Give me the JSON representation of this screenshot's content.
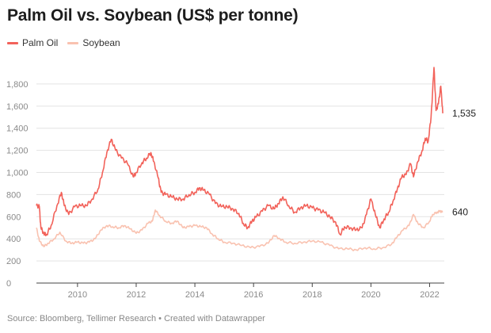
{
  "title": "Palm Oil vs. Soybean (US$ per tonne)",
  "legend": [
    {
      "label": "Palm Oil",
      "color": "#f2625a"
    },
    {
      "label": "Soybean",
      "color": "#f9c2b0"
    }
  ],
  "source": "Source: Bloomberg, Tellimer Research • Created with Datawrapper",
  "chart_data": {
    "type": "line",
    "title": "Palm Oil vs. Soybean (US$ per tonne)",
    "xlabel": "",
    "ylabel": "",
    "xlim": [
      2008.6,
      2022.5
    ],
    "ylim": [
      0,
      1950
    ],
    "x_ticks": [
      2010,
      2012,
      2014,
      2016,
      2018,
      2020,
      2022
    ],
    "y_ticks": [
      0,
      200,
      400,
      600,
      800,
      1000,
      1200,
      1400,
      1600,
      1800
    ],
    "y_tick_labels": [
      "0",
      "200",
      "400",
      "600",
      "800",
      "1,000",
      "1,200",
      "1,400",
      "1,600",
      "1,800"
    ],
    "grid": true,
    "legend_position": "top-left",
    "series": [
      {
        "name": "Palm Oil",
        "color": "#f2625a",
        "end_label": "1,535",
        "points": [
          [
            2008.6,
            700
          ],
          [
            2008.7,
            690
          ],
          [
            2008.75,
            500
          ],
          [
            2008.85,
            450
          ],
          [
            2008.95,
            440
          ],
          [
            2009.1,
            520
          ],
          [
            2009.3,
            700
          ],
          [
            2009.45,
            820
          ],
          [
            2009.55,
            700
          ],
          [
            2009.7,
            620
          ],
          [
            2009.9,
            690
          ],
          [
            2010.1,
            700
          ],
          [
            2010.3,
            700
          ],
          [
            2010.5,
            760
          ],
          [
            2010.7,
            850
          ],
          [
            2010.85,
            1000
          ],
          [
            2011.0,
            1180
          ],
          [
            2011.15,
            1300
          ],
          [
            2011.3,
            1200
          ],
          [
            2011.5,
            1130
          ],
          [
            2011.7,
            1080
          ],
          [
            2011.9,
            960
          ],
          [
            2012.0,
            1000
          ],
          [
            2012.2,
            1090
          ],
          [
            2012.35,
            1130
          ],
          [
            2012.5,
            1180
          ],
          [
            2012.6,
            1100
          ],
          [
            2012.75,
            950
          ],
          [
            2012.85,
            820
          ],
          [
            2013.0,
            800
          ],
          [
            2013.2,
            780
          ],
          [
            2013.4,
            760
          ],
          [
            2013.6,
            760
          ],
          [
            2013.8,
            800
          ],
          [
            2014.0,
            820
          ],
          [
            2014.15,
            860
          ],
          [
            2014.3,
            840
          ],
          [
            2014.5,
            800
          ],
          [
            2014.7,
            720
          ],
          [
            2014.9,
            690
          ],
          [
            2015.1,
            690
          ],
          [
            2015.3,
            670
          ],
          [
            2015.5,
            630
          ],
          [
            2015.65,
            540
          ],
          [
            2015.8,
            500
          ],
          [
            2015.95,
            560
          ],
          [
            2016.1,
            600
          ],
          [
            2016.3,
            650
          ],
          [
            2016.5,
            700
          ],
          [
            2016.7,
            670
          ],
          [
            2016.85,
            720
          ],
          [
            2017.0,
            780
          ],
          [
            2017.2,
            700
          ],
          [
            2017.4,
            640
          ],
          [
            2017.6,
            680
          ],
          [
            2017.8,
            700
          ],
          [
            2018.0,
            680
          ],
          [
            2018.2,
            660
          ],
          [
            2018.4,
            640
          ],
          [
            2018.6,
            600
          ],
          [
            2018.8,
            550
          ],
          [
            2018.95,
            440
          ],
          [
            2019.1,
            510
          ],
          [
            2019.3,
            500
          ],
          [
            2019.5,
            480
          ],
          [
            2019.7,
            500
          ],
          [
            2019.85,
            620
          ],
          [
            2020.0,
            760
          ],
          [
            2020.15,
            620
          ],
          [
            2020.3,
            500
          ],
          [
            2020.45,
            580
          ],
          [
            2020.6,
            640
          ],
          [
            2020.75,
            740
          ],
          [
            2020.9,
            850
          ],
          [
            2021.05,
            960
          ],
          [
            2021.2,
            980
          ],
          [
            2021.35,
            1080
          ],
          [
            2021.45,
            960
          ],
          [
            2021.6,
            1100
          ],
          [
            2021.75,
            1200
          ],
          [
            2021.85,
            1310
          ],
          [
            2021.95,
            1280
          ],
          [
            2022.05,
            1500
          ],
          [
            2022.15,
            1950
          ],
          [
            2022.22,
            1560
          ],
          [
            2022.3,
            1620
          ],
          [
            2022.38,
            1780
          ],
          [
            2022.45,
            1535
          ]
        ]
      },
      {
        "name": "Soybean",
        "color": "#f9c2b0",
        "end_label": "640",
        "points": [
          [
            2008.6,
            500
          ],
          [
            2008.7,
            380
          ],
          [
            2008.85,
            330
          ],
          [
            2009.0,
            360
          ],
          [
            2009.2,
            400
          ],
          [
            2009.4,
            460
          ],
          [
            2009.6,
            380
          ],
          [
            2009.8,
            360
          ],
          [
            2010.0,
            370
          ],
          [
            2010.2,
            360
          ],
          [
            2010.4,
            370
          ],
          [
            2010.6,
            400
          ],
          [
            2010.8,
            480
          ],
          [
            2011.0,
            520
          ],
          [
            2011.2,
            510
          ],
          [
            2011.4,
            500
          ],
          [
            2011.6,
            520
          ],
          [
            2011.8,
            490
          ],
          [
            2012.0,
            450
          ],
          [
            2012.2,
            480
          ],
          [
            2012.4,
            540
          ],
          [
            2012.55,
            560
          ],
          [
            2012.65,
            660
          ],
          [
            2012.8,
            610
          ],
          [
            2013.0,
            560
          ],
          [
            2013.2,
            540
          ],
          [
            2013.4,
            560
          ],
          [
            2013.6,
            500
          ],
          [
            2013.8,
            510
          ],
          [
            2014.0,
            520
          ],
          [
            2014.2,
            510
          ],
          [
            2014.4,
            500
          ],
          [
            2014.6,
            440
          ],
          [
            2014.8,
            400
          ],
          [
            2015.0,
            370
          ],
          [
            2015.3,
            360
          ],
          [
            2015.6,
            340
          ],
          [
            2015.9,
            320
          ],
          [
            2016.2,
            330
          ],
          [
            2016.5,
            360
          ],
          [
            2016.7,
            430
          ],
          [
            2016.9,
            400
          ],
          [
            2017.1,
            370
          ],
          [
            2017.4,
            360
          ],
          [
            2017.7,
            370
          ],
          [
            2018.0,
            380
          ],
          [
            2018.3,
            370
          ],
          [
            2018.6,
            340
          ],
          [
            2018.9,
            310
          ],
          [
            2019.2,
            310
          ],
          [
            2019.5,
            300
          ],
          [
            2019.8,
            320
          ],
          [
            2020.1,
            310
          ],
          [
            2020.4,
            320
          ],
          [
            2020.7,
            350
          ],
          [
            2020.9,
            420
          ],
          [
            2021.1,
            480
          ],
          [
            2021.3,
            520
          ],
          [
            2021.45,
            620
          ],
          [
            2021.6,
            540
          ],
          [
            2021.8,
            500
          ],
          [
            2022.0,
            560
          ],
          [
            2022.1,
            620
          ],
          [
            2022.25,
            640
          ],
          [
            2022.35,
            650
          ],
          [
            2022.45,
            640
          ]
        ]
      }
    ]
  }
}
